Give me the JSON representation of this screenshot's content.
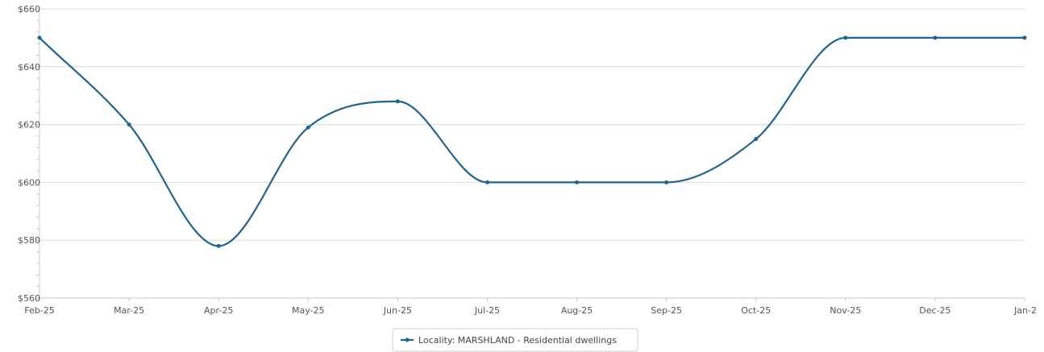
{
  "chart_data": {
    "type": "line",
    "title": "",
    "xlabel": "",
    "ylabel": "",
    "categories": [
      "Feb-25",
      "Mar-25",
      "Apr-25",
      "May-25",
      "Jun-25",
      "Jul-25",
      "Aug-25",
      "Sep-25",
      "Oct-25",
      "Nov-25",
      "Dec-25",
      "Jan-2"
    ],
    "y_ticks": [
      "$560",
      "$580",
      "$600",
      "$620",
      "$640",
      "$660"
    ],
    "ylim": [
      560,
      660
    ],
    "grid": true,
    "legend_position": "bottom-center",
    "series": [
      {
        "name": "Locality: MARSHLAND - Residential dwellings",
        "color": "#1f6390",
        "values": [
          650,
          620,
          578,
          619,
          628,
          600,
          600,
          600,
          615,
          650,
          650,
          650
        ]
      }
    ]
  }
}
